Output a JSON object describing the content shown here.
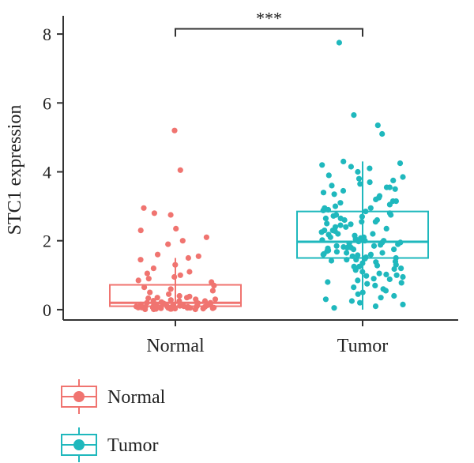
{
  "chart_data": {
    "type": "boxplot",
    "title": "",
    "xlabel": "",
    "ylabel": "STC1 expression",
    "ylim": [
      -0.3,
      8.3
    ],
    "yticks": [
      0,
      2,
      4,
      6,
      8
    ],
    "ytick_labels": [
      "0",
      "2",
      "4",
      "6",
      "8"
    ],
    "categories": [
      "Normal",
      "Tumor"
    ],
    "grid": false,
    "legend_position": "bottom-left",
    "series": [
      {
        "name": "Normal",
        "color": "#F07470",
        "box": {
          "q1": 0.1,
          "median": 0.2,
          "q3": 0.72,
          "whisker_low": 0.0,
          "whisker_high": 1.5
        },
        "points": [
          5.2,
          4.05,
          2.95,
          2.8,
          2.75,
          2.35,
          2.3,
          2.1,
          2.0,
          1.9,
          1.6,
          1.55,
          1.5,
          1.45,
          1.3,
          1.2,
          1.1,
          1.05,
          1.0,
          0.95,
          0.9,
          0.85,
          0.8,
          0.7,
          0.65,
          0.6,
          0.55,
          0.5,
          0.45,
          0.4,
          0.38,
          0.35,
          0.33,
          0.3,
          0.28,
          0.26,
          0.25,
          0.22,
          0.2,
          0.19,
          0.18,
          0.17,
          0.15,
          0.14,
          0.13,
          0.12,
          0.11,
          0.1,
          0.1,
          0.09,
          0.09,
          0.08,
          0.08,
          0.07,
          0.07,
          0.06,
          0.06,
          0.05,
          0.05,
          0.05,
          0.04,
          0.04,
          0.04,
          0.03,
          0.03,
          0.03,
          0.02,
          0.02,
          0.02,
          0.01,
          0.01,
          0.01,
          0.15,
          0.12,
          0.08,
          0.06,
          0.2,
          0.25,
          0.3,
          0.35,
          0.11,
          0.09,
          0.07,
          0.18
        ]
      },
      {
        "name": "Tumor",
        "color": "#1FB8BD",
        "box": {
          "q1": 1.5,
          "median": 1.97,
          "q3": 2.85,
          "whisker_low": 0.0,
          "whisker_high": 4.3
        },
        "points": [
          7.75,
          5.65,
          5.35,
          5.1,
          4.3,
          4.25,
          4.2,
          4.15,
          4.1,
          4.0,
          3.9,
          3.85,
          3.8,
          3.75,
          3.7,
          3.65,
          3.6,
          3.55,
          3.5,
          3.45,
          3.4,
          3.35,
          3.3,
          3.25,
          3.2,
          3.15,
          3.1,
          3.05,
          3.0,
          2.95,
          2.9,
          2.88,
          2.85,
          2.8,
          2.75,
          2.72,
          2.7,
          2.65,
          2.6,
          2.55,
          2.5,
          2.48,
          2.45,
          2.4,
          2.35,
          2.3,
          2.28,
          2.25,
          2.2,
          2.18,
          2.15,
          2.1,
          2.08,
          2.05,
          2.02,
          2.0,
          1.98,
          1.95,
          1.92,
          1.9,
          1.88,
          1.85,
          1.82,
          1.8,
          1.78,
          1.75,
          1.72,
          1.7,
          1.68,
          1.65,
          1.62,
          1.6,
          1.58,
          1.55,
          1.52,
          1.5,
          1.48,
          1.45,
          1.42,
          1.4,
          1.38,
          1.35,
          1.3,
          1.28,
          1.25,
          1.2,
          1.18,
          1.15,
          1.1,
          1.05,
          1.02,
          1.0,
          0.98,
          0.95,
          0.9,
          0.88,
          0.85,
          0.8,
          0.78,
          0.75,
          0.7,
          0.65,
          0.6,
          0.55,
          0.5,
          0.45,
          0.4,
          0.35,
          0.3,
          0.25,
          0.2,
          0.15,
          0.1,
          0.05,
          2.6,
          2.4,
          2.2,
          2.0,
          1.8,
          1.6,
          1.95,
          2.1,
          2.3,
          1.75,
          1.85,
          2.55,
          2.65,
          1.65,
          1.45,
          3.15,
          2.95,
          1.25,
          3.55,
          2.75
        ]
      }
    ],
    "annotations": [
      {
        "type": "significance",
        "between": [
          "Normal",
          "Tumor"
        ],
        "y": 8.15,
        "label": "***"
      }
    ]
  },
  "legend": {
    "items": [
      {
        "label": "Normal",
        "color": "#F07470"
      },
      {
        "label": "Tumor",
        "color": "#1FB8BD"
      }
    ]
  }
}
